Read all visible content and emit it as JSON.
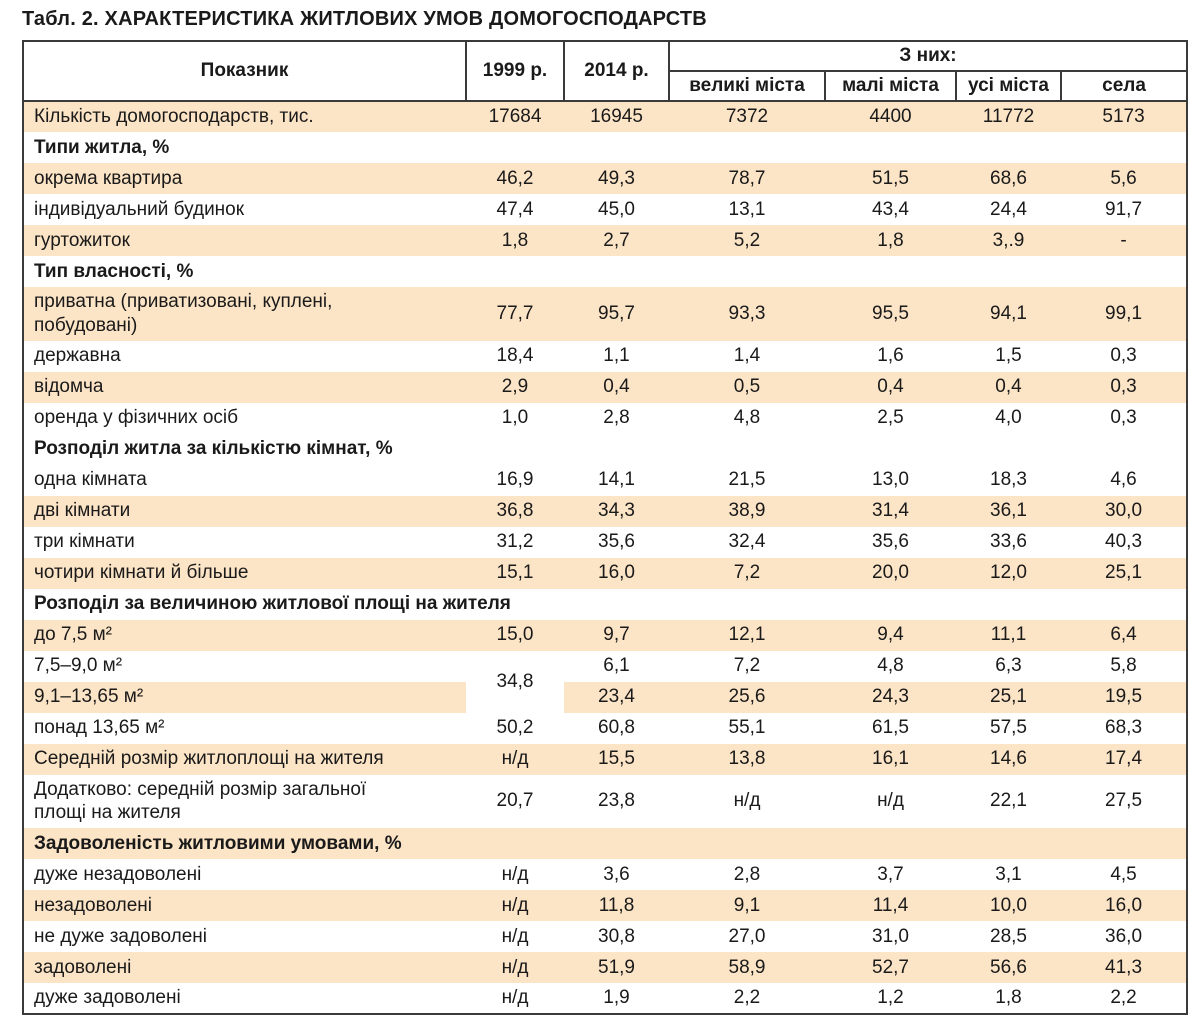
{
  "title": "Табл. 2. ХАРАКТЕРИСТИКА ЖИТЛОВИХ УМОВ ДОМОГОСПОДАРСТВ",
  "colors": {
    "stripe": "#fce4c6",
    "border": "#3a3a3a"
  },
  "table": {
    "header": {
      "indicator": "Показник",
      "col_1999": "1999 р.",
      "col_2014": "2014 р.",
      "group_label": "З них:",
      "subcols": [
        "великі міста",
        "малі міста",
        "усі міста",
        "села"
      ]
    },
    "rows": [
      {
        "type": "data",
        "bg": "o",
        "label": "Кількість домогосподарств, тис.",
        "values": [
          "17684",
          "16945",
          "7372",
          "4400",
          "11772",
          "5173"
        ]
      },
      {
        "type": "section",
        "bg": "w",
        "label": "Типи житла, %"
      },
      {
        "type": "data",
        "bg": "o",
        "label": "окрема квартира",
        "values": [
          "46,2",
          "49,3",
          "78,7",
          "51,5",
          "68,6",
          "5,6"
        ]
      },
      {
        "type": "data",
        "bg": "w",
        "label": "індивідуальний будинок",
        "values": [
          "47,4",
          "45,0",
          "13,1",
          "43,4",
          "24,4",
          "91,7"
        ]
      },
      {
        "type": "data",
        "bg": "o",
        "label": "гуртожиток",
        "values": [
          "1,8",
          "2,7",
          "5,2",
          "1,8",
          "3,.9",
          "-"
        ]
      },
      {
        "type": "section",
        "bg": "w",
        "label": "Тип власності, %"
      },
      {
        "type": "data",
        "bg": "o",
        "wrap": true,
        "label": "приватна (приватизовані, куплені, побудовані)",
        "values": [
          "77,7",
          "95,7",
          "93,3",
          "95,5",
          "94,1",
          "99,1"
        ]
      },
      {
        "type": "data",
        "bg": "w",
        "label": "державна",
        "values": [
          "18,4",
          "1,1",
          "1,4",
          "1,6",
          "1,5",
          "0,3"
        ]
      },
      {
        "type": "data",
        "bg": "o",
        "label": "відомча",
        "values": [
          "2,9",
          "0,4",
          "0,5",
          "0,4",
          "0,4",
          "0,3"
        ]
      },
      {
        "type": "data",
        "bg": "w",
        "label": "оренда у фізичних осіб",
        "values": [
          "1,0",
          "2,8",
          "4,8",
          "2,5",
          "4,0",
          "0,3"
        ]
      },
      {
        "type": "section",
        "bg": "w",
        "label": "Розподіл житла за кількістю кімнат, %"
      },
      {
        "type": "data",
        "bg": "w",
        "label": "одна кімната",
        "values": [
          "16,9",
          "14,1",
          "21,5",
          "13,0",
          "18,3",
          "4,6"
        ]
      },
      {
        "type": "data",
        "bg": "o",
        "label": "дві кімнати",
        "values": [
          "36,8",
          "34,3",
          "38,9",
          "31,4",
          "36,1",
          "30,0"
        ]
      },
      {
        "type": "data",
        "bg": "w",
        "label": "три кімнати",
        "values": [
          "31,2",
          "35,6",
          "32,4",
          "35,6",
          "33,6",
          "40,3"
        ]
      },
      {
        "type": "data",
        "bg": "o",
        "label": "чотири кімнати й більше",
        "values": [
          "15,1",
          "16,0",
          "7,2",
          "20,0",
          "12,0",
          "25,1"
        ]
      },
      {
        "type": "section",
        "bg": "w",
        "label": "Розподіл за величиною житлової площі на жителя"
      },
      {
        "type": "data",
        "bg": "o",
        "label": "до 7,5 м²",
        "values": [
          "15,0",
          "9,7",
          "12,1",
          "9,4",
          "11,1",
          "6,4"
        ]
      },
      {
        "type": "data",
        "bg": "w",
        "label": "7,5–9,0 м²",
        "merge1999": "34,8",
        "values": [
          "6,1",
          "7,2",
          "4,8",
          "6,3",
          "5,8"
        ]
      },
      {
        "type": "data",
        "bg": "o",
        "label": "9,1–13,65 м²",
        "values": [
          "23,4",
          "25,6",
          "24,3",
          "25,1",
          "19,5"
        ]
      },
      {
        "type": "data",
        "bg": "w",
        "label": "понад 13,65 м²",
        "values": [
          "50,2",
          "60,8",
          "55,1",
          "61,5",
          "57,5",
          "68,3"
        ]
      },
      {
        "type": "data",
        "bg": "o",
        "label": "Середній розмір житлоплощі на жителя",
        "values": [
          "н/д",
          "15,5",
          "13,8",
          "16,1",
          "14,6",
          "17,4"
        ]
      },
      {
        "type": "data",
        "bg": "w",
        "wrap": true,
        "label": "Додатково: середній розмір загальної площі на жителя",
        "values": [
          "20,7",
          "23,8",
          "н/д",
          "н/д",
          "22,1",
          "27,5"
        ]
      },
      {
        "type": "section",
        "bg": "o",
        "label": "Задоволеність житловими умовами, %"
      },
      {
        "type": "data",
        "bg": "w",
        "label": "дуже незадоволені",
        "values": [
          "н/д",
          "3,6",
          "2,8",
          "3,7",
          "3,1",
          "4,5"
        ]
      },
      {
        "type": "data",
        "bg": "o",
        "label": "незадоволені",
        "values": [
          "н/д",
          "11,8",
          "9,1",
          "11,4",
          "10,0",
          "16,0"
        ]
      },
      {
        "type": "data",
        "bg": "w",
        "label": "не дуже задоволені",
        "values": [
          "н/д",
          "30,8",
          "27,0",
          "31,0",
          "28,5",
          "36,0"
        ]
      },
      {
        "type": "data",
        "bg": "o",
        "label": "задоволені",
        "values": [
          "н/д",
          "51,9",
          "58,9",
          "52,7",
          "56,6",
          "41,3"
        ]
      },
      {
        "type": "data",
        "bg": "w",
        "label": "дуже задоволені",
        "values": [
          "н/д",
          "1,9",
          "2,2",
          "1,2",
          "1,8",
          "2,2"
        ]
      }
    ]
  }
}
